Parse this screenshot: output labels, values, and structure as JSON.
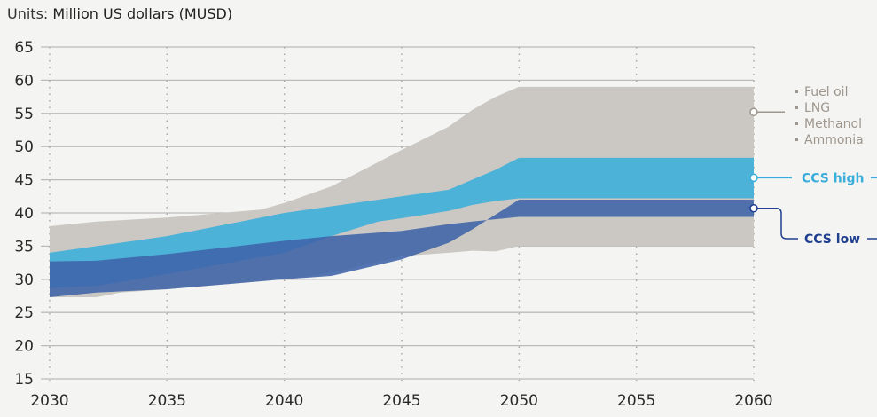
{
  "units": {
    "prefix": "Units:",
    "value": "Million US dollars (MUSD)"
  },
  "chart_data": {
    "type": "area",
    "title": "",
    "xlabel": "",
    "ylabel": "Million US dollars (MUSD)",
    "xlim": [
      2030,
      2060
    ],
    "ylim": [
      15,
      65
    ],
    "xticks": [
      2030,
      2035,
      2040,
      2045,
      2050,
      2055,
      2060
    ],
    "yticks": [
      15,
      20,
      25,
      30,
      35,
      40,
      45,
      50,
      55,
      60,
      65
    ],
    "grid": "horizontal solid, vertical dotted",
    "legend_position": "right",
    "series": [
      {
        "name": "Fuel oil / LNG / Methanol / Ammonia",
        "legend_items": [
          "Fuel oil",
          "LNG",
          "Methanol",
          "Ammonia"
        ],
        "color": "#cbc8c3",
        "legend_color": "#9e968c",
        "upper": {
          "x": [
            2030,
            2032,
            2035,
            2038,
            2039,
            2040,
            2042,
            2045,
            2047,
            2048,
            2049,
            2050,
            2060
          ],
          "y": [
            38,
            38.7,
            39.3,
            40.2,
            40.5,
            41.5,
            44,
            49.5,
            53,
            55.5,
            57.5,
            59,
            59
          ]
        },
        "lower": {
          "x": [
            2030,
            2032,
            2033,
            2035,
            2040,
            2042,
            2045,
            2047,
            2048,
            2049,
            2050,
            2060
          ],
          "y": [
            27.3,
            27.3,
            28,
            28.5,
            30,
            31,
            33.5,
            34,
            34.3,
            34.2,
            35,
            35
          ]
        }
      },
      {
        "name": "CCS high",
        "color": "#3aaedb",
        "legend_color": "#3aaedb",
        "upper": {
          "x": [
            2030,
            2032,
            2035,
            2040,
            2042,
            2045,
            2047,
            2049,
            2050,
            2060
          ],
          "y": [
            34,
            35,
            36.5,
            40,
            41,
            42.5,
            43.5,
            46.5,
            48.3,
            48.3
          ]
        },
        "lower": {
          "x": [
            2030,
            2032,
            2035,
            2040,
            2042,
            2044,
            2045,
            2047,
            2048,
            2049,
            2050,
            2060
          ],
          "y": [
            28.7,
            29,
            30.8,
            34,
            36.5,
            38.7,
            39.2,
            40.3,
            41.2,
            41.8,
            42.2,
            42.2
          ]
        }
      },
      {
        "name": "CCS low",
        "color": "#3f63a8",
        "legend_color": "#1f3f8f",
        "upper": {
          "x": [
            2030,
            2032,
            2035,
            2040,
            2042,
            2045,
            2047,
            2048,
            2050,
            2060
          ],
          "y": [
            32.7,
            32.8,
            33.8,
            35.8,
            36.5,
            37.3,
            38.3,
            38.7,
            39.4,
            39.4
          ]
        },
        "lower": {
          "x": [
            2030,
            2032,
            2035,
            2040,
            2042,
            2045,
            2047,
            2048,
            2050,
            2060
          ],
          "y": [
            27.3,
            28,
            28.5,
            30,
            30.5,
            33,
            35.5,
            37.5,
            42,
            42
          ]
        }
      }
    ]
  }
}
